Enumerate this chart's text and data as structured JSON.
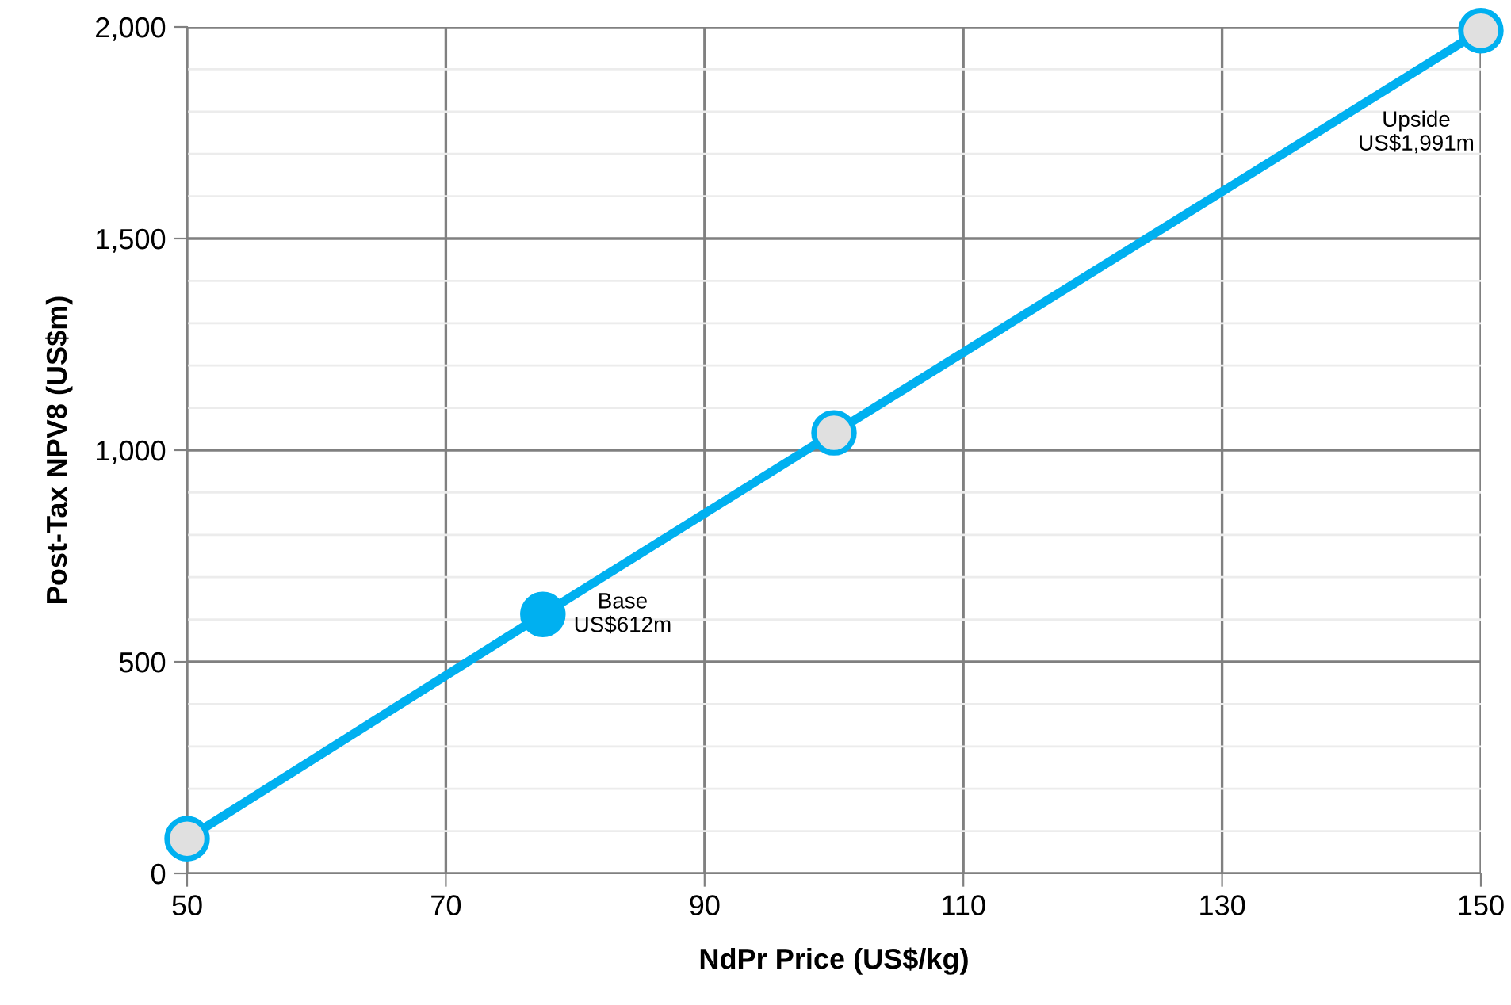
{
  "chart_data": {
    "type": "line",
    "xlabel": "NdPr Price (US$/kg)",
    "ylabel": "Post-Tax NPV8 (US$m)",
    "x": [
      50,
      77.5,
      100,
      150
    ],
    "series": [
      {
        "color": "#00b0f0",
        "colors": [
          "#e0e0e0",
          "#00b0f0",
          "#e0e0e0",
          "#e0e0e0"
        ],
        "values": [
          82,
          612,
          1041,
          1991
        ]
      }
    ],
    "annotations": [
      {
        "text": "Base\nUS$612m",
        "x": 77.5,
        "y": 612
      },
      "Upside\nUS$1,991m"
    ],
    "xlim": [
      50,
      150
    ],
    "xticks": [
      50,
      70,
      90,
      110,
      130,
      150
    ],
    "ylim": [
      0,
      2000
    ],
    "yticks": [
      0,
      500,
      {
        "value": 1000,
        "label": "1,000"
      },
      {
        "value": 1500,
        "label": "1,500"
      },
      {
        "value": 2000,
        "label": "2,000"
      }
    ],
    "grid": true,
    "marker": "circle",
    "line_style": "solid",
    "legend": false
  }
}
